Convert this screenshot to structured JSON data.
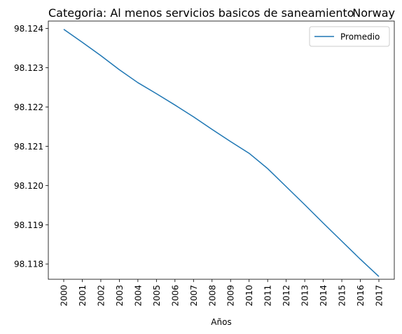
{
  "chart_data": {
    "type": "line",
    "title_left": "Categoria: Al menos servicios basicos de saneamiento",
    "title_right": "Norway",
    "xlabel": "Años",
    "ylabel": "",
    "x": [
      "2000",
      "2001",
      "2002",
      "2003",
      "2004",
      "2005",
      "2006",
      "2007",
      "2008",
      "2009",
      "2010",
      "2011",
      "2012",
      "2013",
      "2014",
      "2015",
      "2016",
      "2017"
    ],
    "series": [
      {
        "name": "Promedio",
        "color": "#1f77b4",
        "values": [
          98.12398,
          98.12365,
          98.12331,
          98.12295,
          98.12262,
          98.12234,
          98.12205,
          98.12175,
          98.12143,
          98.12112,
          98.12082,
          98.12043,
          98.11997,
          98.11951,
          98.11904,
          98.11858,
          98.11812,
          98.11768
        ]
      }
    ],
    "yticks": [
      "98.118",
      "98.119",
      "98.120",
      "98.121",
      "98.122",
      "98.123",
      "98.124"
    ],
    "ylim": [
      98.11761,
      98.12419
    ],
    "grid": false,
    "legend_position": "top-right"
  }
}
